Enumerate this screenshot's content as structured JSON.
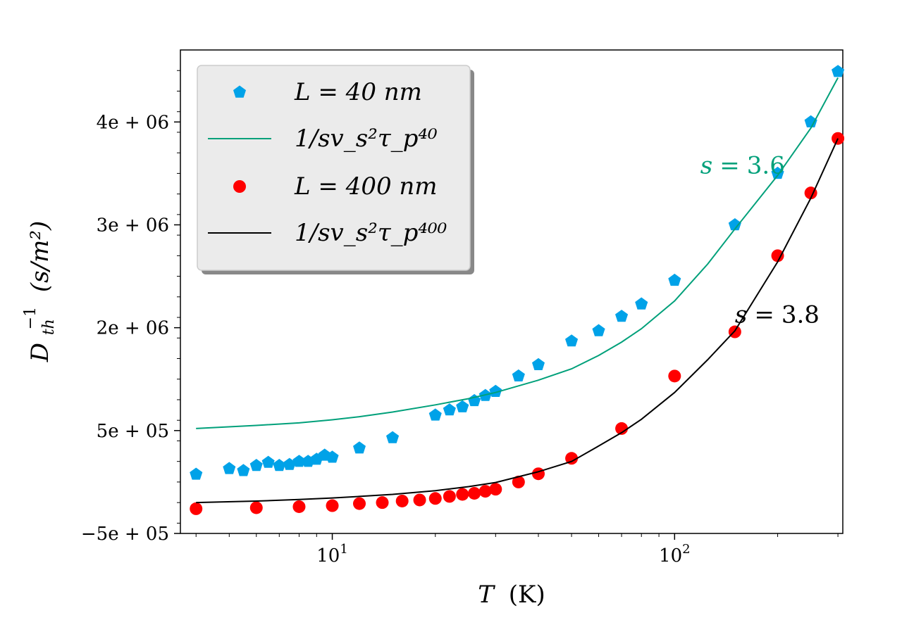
{
  "chart_data": {
    "type": "scatter",
    "x_scale": "log",
    "xlim": [
      3.6,
      310
    ],
    "ylim": [
      -500000,
      4200000
    ],
    "xlabel": {
      "var": "T",
      "unit": "(K)"
    },
    "ylabel": {
      "base": "D",
      "sub": "th",
      "sup": "−1",
      "unit": "(s/m²)"
    },
    "xticks": [
      {
        "value": 10,
        "base": "10",
        "exp": "1"
      },
      {
        "value": 100,
        "base": "10",
        "exp": "2"
      }
    ],
    "yticks": [
      {
        "value": -500000,
        "label": "−5e + 05"
      },
      {
        "value": 500000,
        "label": "5e + 05"
      },
      {
        "value": 1500000,
        "label": "2e + 06"
      },
      {
        "value": 2500000,
        "label": "3e + 06"
      },
      {
        "value": 3500000,
        "label": "4e + 06"
      }
    ],
    "legend_position": "top-left",
    "series": [
      {
        "name": "L = 40 nm",
        "kind": "points",
        "marker": "pentagon",
        "color": "#00a2e8",
        "points": [
          [
            4,
            75000
          ],
          [
            5,
            130000
          ],
          [
            5.5,
            110000
          ],
          [
            6,
            160000
          ],
          [
            6.5,
            190000
          ],
          [
            7,
            160000
          ],
          [
            7.5,
            170000
          ],
          [
            8,
            200000
          ],
          [
            8.5,
            200000
          ],
          [
            9,
            220000
          ],
          [
            9.5,
            260000
          ],
          [
            10,
            240000
          ],
          [
            12,
            330000
          ],
          [
            15,
            430000
          ],
          [
            20,
            650000
          ],
          [
            22,
            700000
          ],
          [
            24,
            730000
          ],
          [
            26,
            790000
          ],
          [
            28,
            840000
          ],
          [
            30,
            880000
          ],
          [
            35,
            1030000
          ],
          [
            40,
            1140000
          ],
          [
            50,
            1370000
          ],
          [
            60,
            1470000
          ],
          [
            70,
            1610000
          ],
          [
            80,
            1730000
          ],
          [
            100,
            1960000
          ],
          [
            150,
            2500000
          ],
          [
            200,
            3000000
          ],
          [
            250,
            3500000
          ],
          [
            300,
            3990000
          ]
        ]
      },
      {
        "name": "1/sv_s²τ_p⁴⁰",
        "kind": "line",
        "color": "#00a07a",
        "points": [
          [
            4,
            520000
          ],
          [
            6,
            550000
          ],
          [
            8,
            575000
          ],
          [
            10,
            605000
          ],
          [
            12,
            635000
          ],
          [
            15,
            680000
          ],
          [
            20,
            750000
          ],
          [
            25,
            810000
          ],
          [
            30,
            870000
          ],
          [
            40,
            990000
          ],
          [
            50,
            1100000
          ],
          [
            60,
            1230000
          ],
          [
            70,
            1360000
          ],
          [
            80,
            1490000
          ],
          [
            100,
            1760000
          ],
          [
            125,
            2120000
          ],
          [
            150,
            2460000
          ],
          [
            200,
            2980000
          ],
          [
            250,
            3440000
          ],
          [
            300,
            3930000
          ]
        ]
      },
      {
        "name": "L = 400 nm",
        "kind": "points",
        "marker": "circle",
        "color": "#ff0000",
        "points": [
          [
            4,
            -260000
          ],
          [
            6,
            -250000
          ],
          [
            8,
            -240000
          ],
          [
            10,
            -230000
          ],
          [
            12,
            -210000
          ],
          [
            14,
            -200000
          ],
          [
            16,
            -185000
          ],
          [
            18,
            -175000
          ],
          [
            20,
            -160000
          ],
          [
            22,
            -140000
          ],
          [
            24,
            -120000
          ],
          [
            26,
            -110000
          ],
          [
            28,
            -90000
          ],
          [
            30,
            -70000
          ],
          [
            35,
            0
          ],
          [
            40,
            80000
          ],
          [
            50,
            230000
          ],
          [
            70,
            520000
          ],
          [
            100,
            1030000
          ],
          [
            150,
            1460000
          ],
          [
            200,
            2200000
          ],
          [
            250,
            2810000
          ],
          [
            300,
            3340000
          ]
        ]
      },
      {
        "name": "1/sv_s²τ_p⁴⁰⁰",
        "kind": "line",
        "color": "#000000",
        "points": [
          [
            4,
            -200000
          ],
          [
            6,
            -185000
          ],
          [
            8,
            -170000
          ],
          [
            10,
            -155000
          ],
          [
            12,
            -140000
          ],
          [
            15,
            -120000
          ],
          [
            20,
            -85000
          ],
          [
            25,
            -45000
          ],
          [
            30,
            -5000
          ],
          [
            40,
            100000
          ],
          [
            50,
            200000
          ],
          [
            60,
            350000
          ],
          [
            70,
            480000
          ],
          [
            80,
            610000
          ],
          [
            100,
            870000
          ],
          [
            125,
            1190000
          ],
          [
            150,
            1470000
          ],
          [
            200,
            2140000
          ],
          [
            250,
            2760000
          ],
          [
            300,
            3340000
          ]
        ]
      }
    ],
    "annotations": [
      {
        "name": "annotation-s-36",
        "text": "3.6",
        "var": "s",
        "color": "#00a07a",
        "x": 210,
        "y": 3000000,
        "anchor": "end"
      },
      {
        "name": "annotation-s-38",
        "text": "3.8",
        "var": "s",
        "color": "#000000",
        "x": 265,
        "y": 1550000,
        "anchor": "end"
      }
    ]
  }
}
